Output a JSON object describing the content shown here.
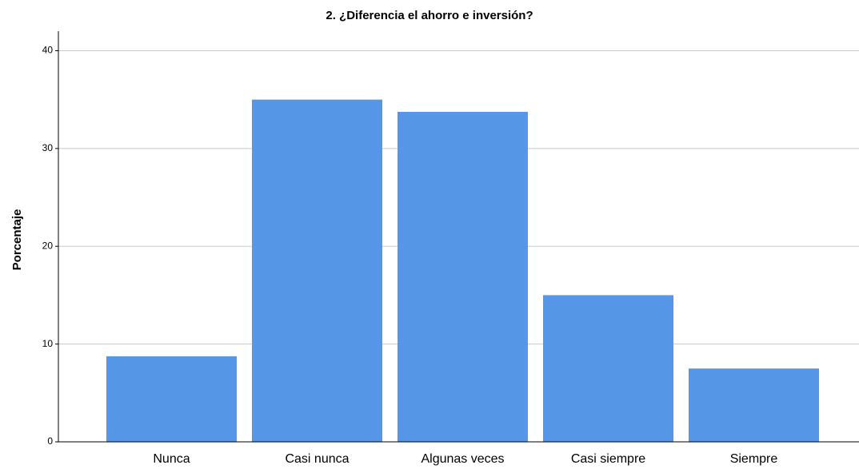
{
  "chart_data": {
    "type": "bar",
    "title": "2. ¿Diferencia el ahorro e inversión?",
    "y_label": "Porcentaje",
    "categories": [
      "Nunca",
      "Casi nunca",
      "Algunas veces",
      "Casi siempre",
      "Siempre"
    ],
    "values": [
      8.75,
      35,
      33.75,
      15,
      7.5
    ],
    "color": "#5596e6",
    "ylim": [
      0,
      42
    ],
    "yticks": [
      0,
      10,
      20,
      30,
      40
    ],
    "grid": true
  }
}
